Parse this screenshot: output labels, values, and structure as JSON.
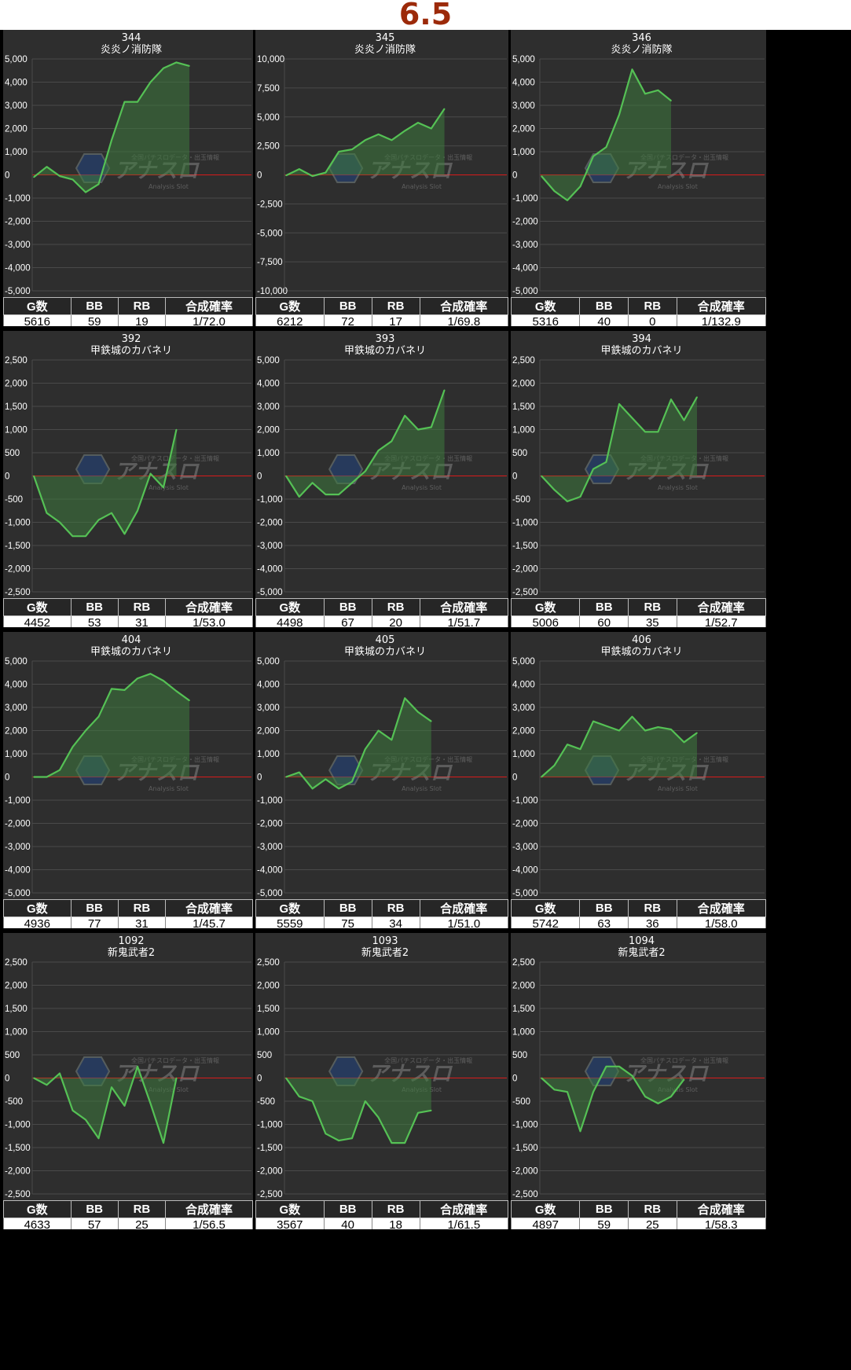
{
  "page_title": "6.5",
  "colors": {
    "line": "#55c155",
    "fill": "#3e7a3e",
    "zero_line": "#d81b1b",
    "panel_bg": "#2e2e2e",
    "grid": "#4a4a4a",
    "axis_text": "#ffffff",
    "title_text": "#9c2a0a"
  },
  "watermark": {
    "brand": "アナスロ",
    "tagline": "全国パチスロデータ・出玉情報",
    "sub": "Analysis Slot"
  },
  "table_headers": [
    "G数",
    "BB",
    "RB",
    "合成確率"
  ],
  "chart_data": [
    {
      "type": "line",
      "machine_no": "344",
      "machine_name": "炎炎ノ消防隊",
      "ylim": [
        -5000,
        5000
      ],
      "yticks": [
        "5,000",
        "4,000",
        "3,000",
        "2,000",
        "1,000",
        "0",
        "-1,000",
        "-2,000",
        "-3,000",
        "-4,000",
        "-5,000"
      ],
      "values": [
        -100,
        350,
        -50,
        -200,
        -750,
        -400,
        1500,
        3150,
        3150,
        4000,
        4600,
        4850,
        4700
      ],
      "stats": {
        "games": "5616",
        "bb": "59",
        "rb": "19",
        "rate": "1/72.0"
      }
    },
    {
      "type": "line",
      "machine_no": "345",
      "machine_name": "炎炎ノ消防隊",
      "ylim": [
        -10000,
        10000
      ],
      "yticks": [
        "10,000",
        "7,500",
        "5,000",
        "2,500",
        "0",
        "-2,500",
        "-5,000",
        "-7,500",
        "-10,000"
      ],
      "values": [
        -50,
        500,
        -100,
        200,
        2000,
        2200,
        3000,
        3500,
        3000,
        3800,
        4500,
        4000,
        5700
      ],
      "stats": {
        "games": "6212",
        "bb": "72",
        "rb": "17",
        "rate": "1/69.8"
      }
    },
    {
      "type": "line",
      "machine_no": "346",
      "machine_name": "炎炎ノ消防隊",
      "ylim": [
        -5000,
        5000
      ],
      "yticks": [
        "5,000",
        "4,000",
        "3,000",
        "2,000",
        "1,000",
        "0",
        "-1,000",
        "-2,000",
        "-3,000",
        "-4,000",
        "-5,000"
      ],
      "values": [
        -50,
        -700,
        -1100,
        -500,
        800,
        1200,
        2600,
        4550,
        3500,
        3650,
        3200
      ],
      "stats": {
        "games": "5316",
        "bb": "40",
        "rb": "0",
        "rate": "1/132.9"
      }
    },
    {
      "type": "line",
      "machine_no": "392",
      "machine_name": "甲鉄城のカバネリ",
      "ylim": [
        -2500,
        2500
      ],
      "yticks": [
        "2,500",
        "2,000",
        "1,500",
        "1,000",
        "500",
        "0",
        "-500",
        "-1,000",
        "-1,500",
        "-2,000",
        "-2,500"
      ],
      "values": [
        0,
        -800,
        -1000,
        -1300,
        -1300,
        -950,
        -800,
        -1250,
        -750,
        50,
        -250,
        1000
      ],
      "stats": {
        "games": "4452",
        "bb": "53",
        "rb": "31",
        "rate": "1/53.0"
      }
    },
    {
      "type": "line",
      "machine_no": "393",
      "machine_name": "甲鉄城のカバネリ",
      "ylim": [
        -5000,
        5000
      ],
      "yticks": [
        "5,000",
        "4,000",
        "3,000",
        "2,000",
        "1,000",
        "0",
        "-1,000",
        "-2,000",
        "-3,000",
        "-4,000",
        "-5,000"
      ],
      "values": [
        0,
        -900,
        -300,
        -800,
        -800,
        -300,
        200,
        1100,
        1500,
        2600,
        2000,
        2100,
        3700
      ],
      "stats": {
        "games": "4498",
        "bb": "67",
        "rb": "20",
        "rate": "1/51.7"
      }
    },
    {
      "type": "line",
      "machine_no": "394",
      "machine_name": "甲鉄城のカバネリ",
      "ylim": [
        -2500,
        2500
      ],
      "yticks": [
        "2,500",
        "2,000",
        "1,500",
        "1,000",
        "500",
        "0",
        "-500",
        "-1,000",
        "-1,500",
        "-2,000",
        "-2,500"
      ],
      "values": [
        0,
        -300,
        -550,
        -450,
        150,
        300,
        1550,
        1250,
        950,
        950,
        1650,
        1200,
        1700
      ],
      "stats": {
        "games": "5006",
        "bb": "60",
        "rb": "35",
        "rate": "1/52.7"
      }
    },
    {
      "type": "line",
      "machine_no": "404",
      "machine_name": "甲鉄城のカバネリ",
      "ylim": [
        -5000,
        5000
      ],
      "yticks": [
        "5,000",
        "4,000",
        "3,000",
        "2,000",
        "1,000",
        "0",
        "-1,000",
        "-2,000",
        "-3,000",
        "-4,000",
        "-5,000"
      ],
      "values": [
        0,
        0,
        300,
        1300,
        2000,
        2600,
        3800,
        3750,
        4250,
        4450,
        4150,
        3700,
        3300
      ],
      "stats": {
        "games": "4936",
        "bb": "77",
        "rb": "31",
        "rate": "1/45.7"
      }
    },
    {
      "type": "line",
      "machine_no": "405",
      "machine_name": "甲鉄城のカバネリ",
      "ylim": [
        -5000,
        5000
      ],
      "yticks": [
        "5,000",
        "4,000",
        "3,000",
        "2,000",
        "1,000",
        "0",
        "-1,000",
        "-2,000",
        "-3,000",
        "-4,000",
        "-5,000"
      ],
      "values": [
        0,
        200,
        -500,
        -100,
        -500,
        -200,
        1200,
        2000,
        1600,
        3400,
        2800,
        2400
      ],
      "stats": {
        "games": "5559",
        "bb": "75",
        "rb": "34",
        "rate": "1/51.0"
      }
    },
    {
      "type": "line",
      "machine_no": "406",
      "machine_name": "甲鉄城のカバネリ",
      "ylim": [
        -5000,
        5000
      ],
      "yticks": [
        "5,000",
        "4,000",
        "3,000",
        "2,000",
        "1,000",
        "0",
        "-1,000",
        "-2,000",
        "-3,000",
        "-4,000",
        "-5,000"
      ],
      "values": [
        0,
        500,
        1400,
        1200,
        2400,
        2200,
        2000,
        2600,
        2000,
        2150,
        2050,
        1500,
        1900
      ],
      "stats": {
        "games": "5742",
        "bb": "63",
        "rb": "36",
        "rate": "1/58.0"
      }
    },
    {
      "type": "line",
      "machine_no": "1092",
      "machine_name": "新鬼武者2",
      "ylim": [
        -2500,
        2500
      ],
      "yticks": [
        "2,500",
        "2,000",
        "1,500",
        "1,000",
        "500",
        "0",
        "-500",
        "-1,000",
        "-1,500",
        "-2,000",
        "-2,500"
      ],
      "values": [
        0,
        -150,
        100,
        -700,
        -900,
        -1300,
        -200,
        -600,
        250,
        -550,
        -1400,
        0
      ],
      "stats": {
        "games": "4633",
        "bb": "57",
        "rb": "25",
        "rate": "1/56.5"
      }
    },
    {
      "type": "line",
      "machine_no": "1093",
      "machine_name": "新鬼武者2",
      "ylim": [
        -2500,
        2500
      ],
      "yticks": [
        "2,500",
        "2,000",
        "1,500",
        "1,000",
        "500",
        "0",
        "-500",
        "-1,000",
        "-1,500",
        "-2,000",
        "-2,500"
      ],
      "values": [
        0,
        -400,
        -500,
        -1200,
        -1350,
        -1300,
        -500,
        -850,
        -1400,
        -1400,
        -750,
        -700
      ],
      "stats": {
        "games": "3567",
        "bb": "40",
        "rb": "18",
        "rate": "1/61.5"
      }
    },
    {
      "type": "line",
      "machine_no": "1094",
      "machine_name": "新鬼武者2",
      "ylim": [
        -2500,
        2500
      ],
      "yticks": [
        "2,500",
        "2,000",
        "1,500",
        "1,000",
        "500",
        "0",
        "-500",
        "-1,000",
        "-1,500",
        "-2,000",
        "-2,500"
      ],
      "values": [
        0,
        -250,
        -300,
        -1150,
        -300,
        250,
        250,
        50,
        -400,
        -550,
        -400,
        -30
      ],
      "stats": {
        "games": "4897",
        "bb": "59",
        "rb": "25",
        "rate": "1/58.3"
      }
    }
  ]
}
